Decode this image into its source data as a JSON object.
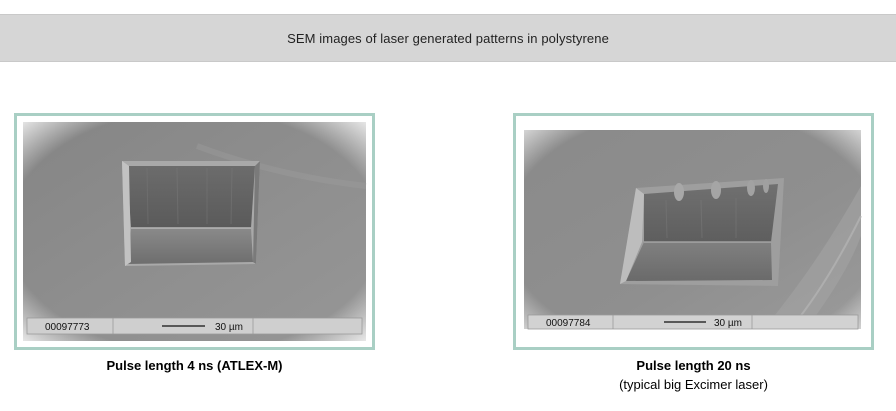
{
  "header": {
    "title": "SEM images of laser generated patterns in polystyrene"
  },
  "figures": [
    {
      "image_id_label": "00097773",
      "scale_label": "30 µm",
      "caption": "Pulse length 4 ns (ATLEX-M)",
      "subcaption": ""
    },
    {
      "image_id_label": "00097784",
      "scale_label": "30 µm",
      "caption": "Pulse length 20 ns",
      "subcaption": "(typical big Excimer laser)"
    }
  ],
  "colors": {
    "frame_border": "#a9cfc4",
    "header_bg": "#d6d6d6",
    "sem_surface": "#8c8c8c"
  }
}
